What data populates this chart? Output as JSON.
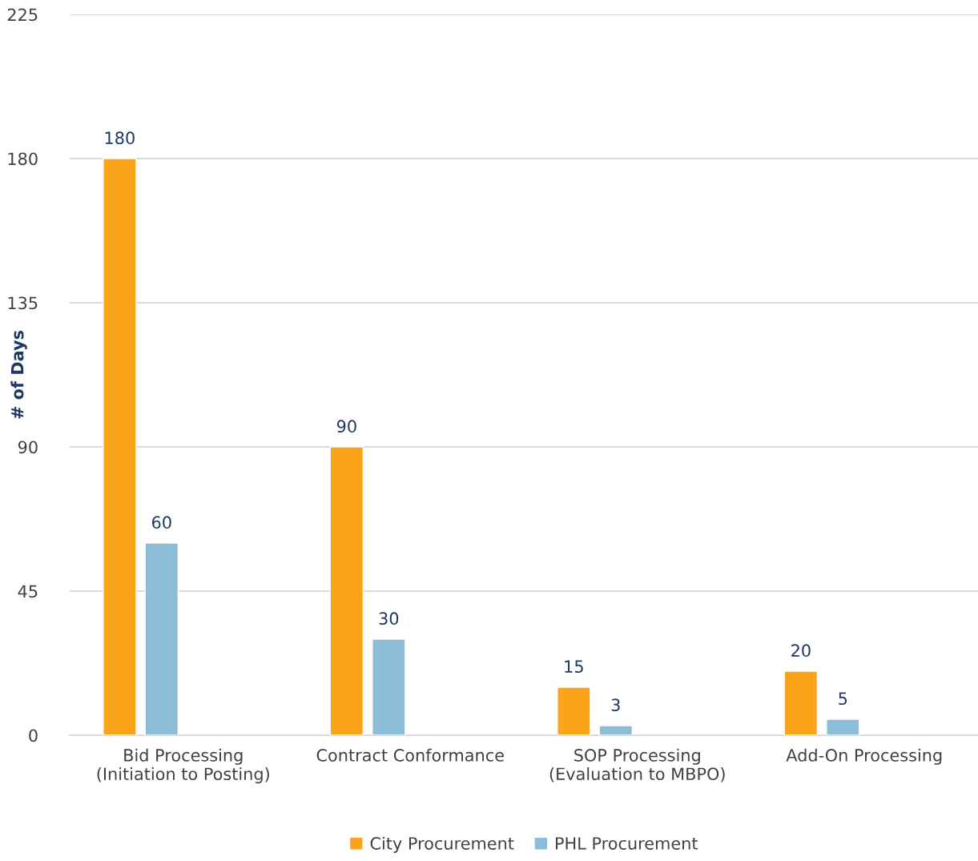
{
  "chart_data": {
    "type": "bar",
    "ylabel": "# of Days",
    "categories": [
      "Bid Processing\n(Initiation to Posting)",
      "Contract Conformance",
      "SOP Processing\n(Evaluation to MBPO)",
      "Add-On Processing"
    ],
    "series": [
      {
        "name": "City Procurement",
        "color": "#fba31a",
        "values": [
          180,
          90,
          15,
          20
        ]
      },
      {
        "name": "PHL Procurement",
        "color": "#8bbcd8",
        "values": [
          60,
          30,
          3,
          5
        ]
      }
    ],
    "ylim": [
      0,
      225
    ],
    "yticks": [
      0,
      45,
      90,
      135,
      180,
      225
    ],
    "grid": "y",
    "legend": "bottom",
    "data_labels": true
  }
}
